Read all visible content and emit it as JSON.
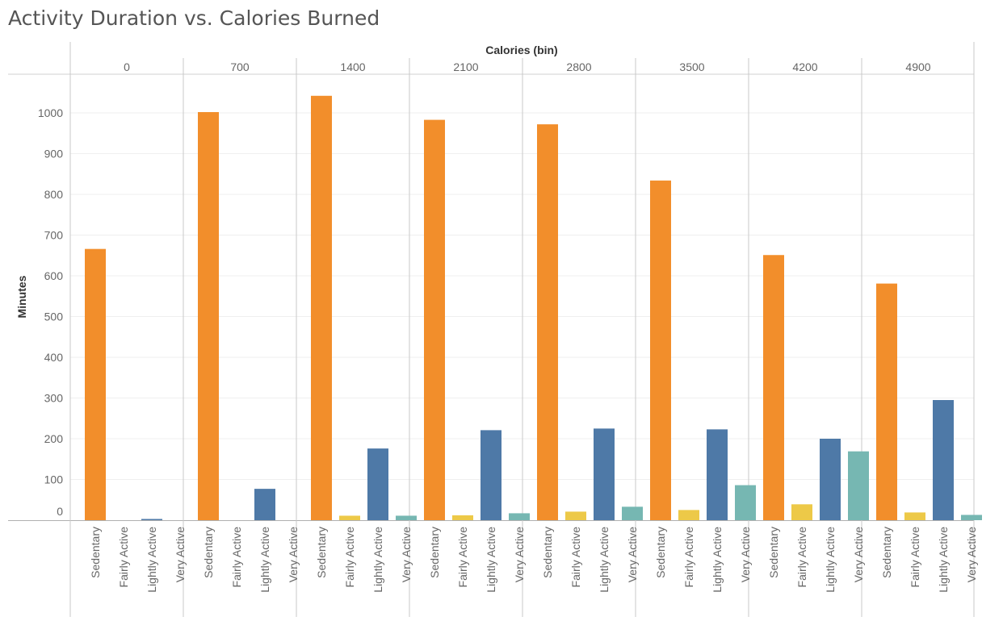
{
  "chart_data": {
    "type": "bar",
    "title": "Activity Duration vs. Calories Burned",
    "column_header": "Calories (bin)",
    "ylabel": "Minutes",
    "ylim": [
      0,
      1100
    ],
    "y_ticks": [
      0,
      100,
      200,
      300,
      400,
      500,
      600,
      700,
      800,
      900,
      1000
    ],
    "grid": true,
    "bins": [
      "0",
      "700",
      "1400",
      "2100",
      "2800",
      "3500",
      "4200",
      "4900"
    ],
    "categories": [
      "Sedentary",
      "Fairly Active",
      "Lightly Active",
      "Very Active"
    ],
    "colors": {
      "Sedentary": "#F28E2B",
      "Fairly Active": "#EDC948",
      "Lightly Active": "#4E79A7",
      "Very Active": "#76B7B2"
    },
    "series": [
      {
        "name": "Sedentary",
        "values": [
          666,
          1002,
          1042,
          983,
          972,
          834,
          651,
          581
        ]
      },
      {
        "name": "Fairly Active",
        "values": [
          0,
          0,
          11,
          12,
          21,
          25,
          39,
          19
        ]
      },
      {
        "name": "Lightly Active",
        "values": [
          3,
          77,
          176,
          221,
          225,
          223,
          200,
          295
        ]
      },
      {
        "name": "Very Active",
        "values": [
          0,
          0,
          11,
          17,
          33,
          86,
          169,
          13
        ]
      }
    ]
  }
}
